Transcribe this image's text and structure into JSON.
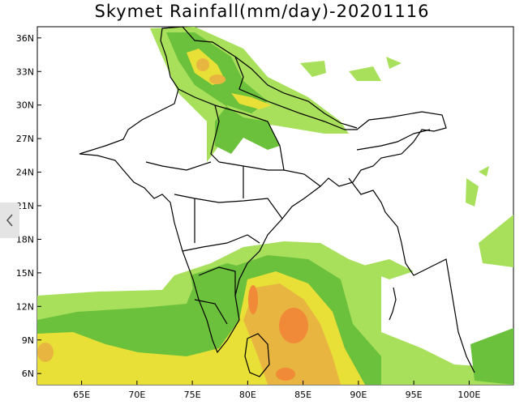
{
  "title": "Skymet Rainfall(mm/day)-20201116",
  "nav": {
    "prev_icon": "chevron-left-icon"
  },
  "colors": {
    "light_green": "#a8e05c",
    "green": "#6cc13c",
    "yellow": "#e8e036",
    "orange_yellow": "#e8b640",
    "orange": "#f08a38",
    "land_outline": "#000000"
  },
  "map": {
    "lon_range": [
      61,
      104
    ],
    "lat_range": [
      5,
      37
    ],
    "x_ticks": [
      "65E",
      "70E",
      "75E",
      "80E",
      "85E",
      "90E",
      "95E",
      "100E"
    ],
    "y_ticks": [
      "36N",
      "33N",
      "30N",
      "27N",
      "24N",
      "21N",
      "18N",
      "15N",
      "12N",
      "9N",
      "6N"
    ]
  }
}
